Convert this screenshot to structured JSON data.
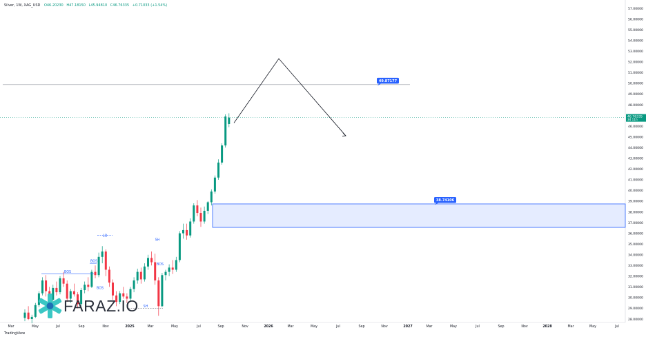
{
  "header": {
    "symbol": "Silver, 1W, XAG_USD",
    "open": "O46.20230",
    "high": "H47.18150",
    "low": "L45.94810",
    "close": "C46.76335",
    "change": "+0.71033 (+1.54%)"
  },
  "watermark": "FARAZ.IO",
  "footer": "TradingView",
  "chart_data": {
    "type": "candlestick",
    "ylim": [
      27.5,
      57.5
    ],
    "y_ticks": [
      "28.00000",
      "29.00000",
      "30.00000",
      "31.00000",
      "32.00000",
      "33.00000",
      "34.00000",
      "35.00000",
      "36.00000",
      "37.00000",
      "38.00000",
      "39.00000",
      "40.00000",
      "41.00000",
      "42.00000",
      "43.00000",
      "44.00000",
      "45.00000",
      "46.00000",
      "47.00000",
      "48.00000",
      "49.00000",
      "50.00000",
      "51.00000",
      "52.00000",
      "53.00000",
      "54.00000",
      "55.00000",
      "56.00000",
      "57.00000"
    ],
    "x_ticks": [
      "Mar",
      "May",
      "Jul",
      "Sep",
      "Nov",
      "2025",
      "Mar",
      "May",
      "Jul",
      "Sep",
      "Nov",
      "2026",
      "Mar",
      "May",
      "Jul",
      "Sep",
      "Nov",
      "2027",
      "Mar",
      "May",
      "Jul",
      "Sep",
      "Nov",
      "2028",
      "Mar",
      "May",
      "Jul"
    ],
    "candles": [
      [
        28.1,
        28.9,
        27.8,
        28.6
      ],
      [
        28.6,
        29.2,
        27.9,
        28.0
      ],
      [
        28.0,
        28.4,
        27.6,
        28.2
      ],
      [
        28.2,
        29.5,
        28.1,
        29.3
      ],
      [
        29.3,
        30.6,
        29.1,
        30.4
      ],
      [
        30.4,
        31.9,
        30.2,
        31.6
      ],
      [
        31.6,
        32.1,
        30.1,
        30.6
      ],
      [
        30.6,
        31.0,
        29.4,
        29.8
      ],
      [
        29.8,
        31.2,
        29.6,
        30.9
      ],
      [
        30.9,
        31.5,
        30.2,
        30.5
      ],
      [
        30.5,
        32.0,
        30.3,
        31.8
      ],
      [
        31.8,
        32.4,
        31.0,
        31.3
      ],
      [
        31.3,
        31.6,
        29.6,
        29.9
      ],
      [
        29.9,
        30.8,
        29.5,
        30.6
      ],
      [
        30.6,
        31.3,
        30.1,
        30.3
      ],
      [
        30.3,
        30.5,
        29.0,
        29.4
      ],
      [
        29.4,
        30.9,
        29.2,
        30.7
      ],
      [
        30.7,
        31.5,
        30.4,
        31.2
      ],
      [
        31.2,
        31.9,
        30.6,
        31.0
      ],
      [
        31.0,
        32.6,
        30.9,
        32.4
      ],
      [
        32.4,
        33.0,
        31.8,
        32.1
      ],
      [
        32.1,
        34.2,
        31.9,
        33.8
      ],
      [
        33.8,
        34.8,
        33.2,
        34.3
      ],
      [
        34.3,
        34.5,
        32.0,
        32.6
      ],
      [
        32.6,
        32.9,
        31.0,
        31.4
      ],
      [
        31.4,
        31.7,
        29.8,
        30.2
      ],
      [
        30.2,
        30.6,
        29.2,
        29.6
      ],
      [
        29.6,
        30.6,
        29.4,
        30.4
      ],
      [
        30.4,
        31.0,
        29.9,
        30.1
      ],
      [
        30.1,
        30.4,
        29.5,
        29.9
      ],
      [
        29.9,
        31.0,
        29.7,
        30.8
      ],
      [
        30.8,
        31.9,
        30.5,
        31.6
      ],
      [
        31.6,
        32.7,
        31.3,
        32.4
      ],
      [
        32.4,
        32.8,
        31.3,
        31.7
      ],
      [
        31.7,
        33.2,
        31.5,
        32.9
      ],
      [
        32.9,
        34.0,
        32.6,
        33.7
      ],
      [
        33.7,
        34.3,
        33.0,
        33.3
      ],
      [
        33.3,
        34.1,
        31.2,
        31.6
      ],
      [
        31.6,
        31.9,
        28.3,
        29.2
      ],
      [
        29.2,
        32.3,
        29.1,
        32.1
      ],
      [
        32.1,
        32.6,
        31.6,
        32.4
      ],
      [
        32.4,
        33.1,
        32.0,
        32.8
      ],
      [
        32.8,
        33.5,
        32.2,
        32.6
      ],
      [
        32.6,
        33.8,
        32.4,
        33.5
      ],
      [
        33.5,
        36.2,
        33.3,
        36.0
      ],
      [
        36.0,
        36.9,
        35.5,
        36.3
      ],
      [
        36.3,
        36.9,
        35.4,
        35.8
      ],
      [
        35.8,
        37.4,
        35.6,
        37.1
      ],
      [
        37.1,
        38.8,
        36.9,
        38.6
      ],
      [
        38.6,
        39.1,
        37.6,
        37.9
      ],
      [
        37.9,
        38.4,
        36.6,
        37.1
      ],
      [
        37.1,
        38.5,
        36.9,
        38.1
      ],
      [
        38.1,
        39.0,
        37.8,
        38.9
      ],
      [
        38.9,
        40.1,
        38.6,
        39.9
      ],
      [
        39.9,
        41.4,
        39.7,
        41.2
      ],
      [
        41.2,
        42.9,
        41.0,
        42.6
      ],
      [
        42.6,
        44.4,
        42.4,
        44.2
      ],
      [
        44.2,
        47.1,
        44.0,
        46.9
      ],
      [
        46.2,
        47.2,
        45.9,
        46.8
      ]
    ],
    "annotations": [
      {
        "text": "BOS"
      },
      {
        "text": "BOS"
      },
      {
        "text": "LQ"
      },
      {
        "text": "SH"
      },
      {
        "text": "SH"
      },
      {
        "text": "BOS"
      },
      {
        "text": "BOS"
      }
    ],
    "horizontal_line": {
      "price": 49.87177,
      "label": "49.87177"
    },
    "zone": {
      "top": 38.74106,
      "bottom": 36.55,
      "label": "38.74106"
    },
    "projection": [
      [
        0,
        46.3
      ],
      [
        1,
        52.3
      ],
      [
        2,
        45.1
      ]
    ],
    "last_price": {
      "label": "46.76335",
      "sub": "34 11h"
    },
    "colors": {
      "up": "#089981",
      "down": "#f23645",
      "zone": "#2962ff",
      "label": "#2962ff",
      "last": "#089981"
    }
  }
}
